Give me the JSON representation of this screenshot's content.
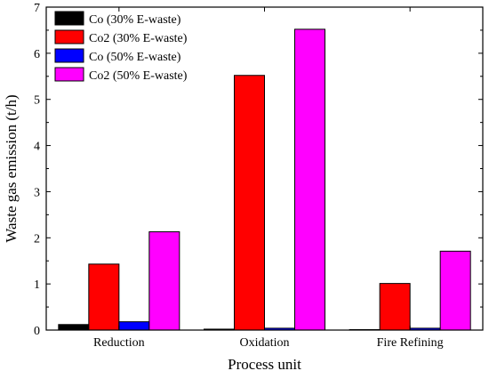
{
  "chart_data": {
    "type": "bar",
    "title": "",
    "xlabel": "Process unit",
    "ylabel": "Waste gas emission (t/h)",
    "categories": [
      "Reduction",
      "Oxidation",
      "Fire Refining"
    ],
    "ylim": [
      0,
      7
    ],
    "yticks": [
      0,
      1,
      2,
      3,
      4,
      5,
      6,
      7
    ],
    "grid": false,
    "legend_position": "top-left",
    "series": [
      {
        "name": "Co (30% E-waste)",
        "color": "#000000",
        "values": [
          0.12,
          0.02,
          0.01
        ]
      },
      {
        "name": "Co2 (30% E-waste)",
        "color": "#ff0000",
        "values": [
          1.43,
          5.52,
          1.01
        ]
      },
      {
        "name": "Co (50% E-waste)",
        "color": "#0000ff",
        "values": [
          0.18,
          0.04,
          0.04
        ]
      },
      {
        "name": "Co2 (50% E-waste)",
        "color": "#ff00ff",
        "values": [
          2.13,
          6.52,
          1.71
        ]
      }
    ]
  }
}
